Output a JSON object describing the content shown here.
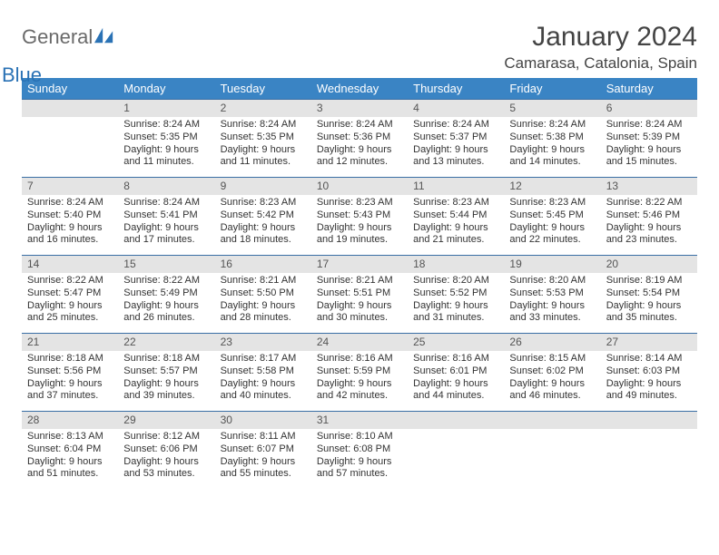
{
  "logo": {
    "general": "General",
    "blue": "Blue"
  },
  "title": "January 2024",
  "location": "Camarasa, Catalonia, Spain",
  "colors": {
    "header_bg": "#3a84c4",
    "header_text": "#ffffff",
    "row_border": "#3a6fa5",
    "daynum_bg": "#e4e4e4",
    "body_text": "#333333",
    "logo_accent": "#2a72b5"
  },
  "weekdays": [
    "Sunday",
    "Monday",
    "Tuesday",
    "Wednesday",
    "Thursday",
    "Friday",
    "Saturday"
  ],
  "blank_leading": 1,
  "days": [
    {
      "n": 1,
      "sunrise": "8:24 AM",
      "sunset": "5:35 PM",
      "daylight": "9 hours and 11 minutes."
    },
    {
      "n": 2,
      "sunrise": "8:24 AM",
      "sunset": "5:35 PM",
      "daylight": "9 hours and 11 minutes."
    },
    {
      "n": 3,
      "sunrise": "8:24 AM",
      "sunset": "5:36 PM",
      "daylight": "9 hours and 12 minutes."
    },
    {
      "n": 4,
      "sunrise": "8:24 AM",
      "sunset": "5:37 PM",
      "daylight": "9 hours and 13 minutes."
    },
    {
      "n": 5,
      "sunrise": "8:24 AM",
      "sunset": "5:38 PM",
      "daylight": "9 hours and 14 minutes."
    },
    {
      "n": 6,
      "sunrise": "8:24 AM",
      "sunset": "5:39 PM",
      "daylight": "9 hours and 15 minutes."
    },
    {
      "n": 7,
      "sunrise": "8:24 AM",
      "sunset": "5:40 PM",
      "daylight": "9 hours and 16 minutes."
    },
    {
      "n": 8,
      "sunrise": "8:24 AM",
      "sunset": "5:41 PM",
      "daylight": "9 hours and 17 minutes."
    },
    {
      "n": 9,
      "sunrise": "8:23 AM",
      "sunset": "5:42 PM",
      "daylight": "9 hours and 18 minutes."
    },
    {
      "n": 10,
      "sunrise": "8:23 AM",
      "sunset": "5:43 PM",
      "daylight": "9 hours and 19 minutes."
    },
    {
      "n": 11,
      "sunrise": "8:23 AM",
      "sunset": "5:44 PM",
      "daylight": "9 hours and 21 minutes."
    },
    {
      "n": 12,
      "sunrise": "8:23 AM",
      "sunset": "5:45 PM",
      "daylight": "9 hours and 22 minutes."
    },
    {
      "n": 13,
      "sunrise": "8:22 AM",
      "sunset": "5:46 PM",
      "daylight": "9 hours and 23 minutes."
    },
    {
      "n": 14,
      "sunrise": "8:22 AM",
      "sunset": "5:47 PM",
      "daylight": "9 hours and 25 minutes."
    },
    {
      "n": 15,
      "sunrise": "8:22 AM",
      "sunset": "5:49 PM",
      "daylight": "9 hours and 26 minutes."
    },
    {
      "n": 16,
      "sunrise": "8:21 AM",
      "sunset": "5:50 PM",
      "daylight": "9 hours and 28 minutes."
    },
    {
      "n": 17,
      "sunrise": "8:21 AM",
      "sunset": "5:51 PM",
      "daylight": "9 hours and 30 minutes."
    },
    {
      "n": 18,
      "sunrise": "8:20 AM",
      "sunset": "5:52 PM",
      "daylight": "9 hours and 31 minutes."
    },
    {
      "n": 19,
      "sunrise": "8:20 AM",
      "sunset": "5:53 PM",
      "daylight": "9 hours and 33 minutes."
    },
    {
      "n": 20,
      "sunrise": "8:19 AM",
      "sunset": "5:54 PM",
      "daylight": "9 hours and 35 minutes."
    },
    {
      "n": 21,
      "sunrise": "8:18 AM",
      "sunset": "5:56 PM",
      "daylight": "9 hours and 37 minutes."
    },
    {
      "n": 22,
      "sunrise": "8:18 AM",
      "sunset": "5:57 PM",
      "daylight": "9 hours and 39 minutes."
    },
    {
      "n": 23,
      "sunrise": "8:17 AM",
      "sunset": "5:58 PM",
      "daylight": "9 hours and 40 minutes."
    },
    {
      "n": 24,
      "sunrise": "8:16 AM",
      "sunset": "5:59 PM",
      "daylight": "9 hours and 42 minutes."
    },
    {
      "n": 25,
      "sunrise": "8:16 AM",
      "sunset": "6:01 PM",
      "daylight": "9 hours and 44 minutes."
    },
    {
      "n": 26,
      "sunrise": "8:15 AM",
      "sunset": "6:02 PM",
      "daylight": "9 hours and 46 minutes."
    },
    {
      "n": 27,
      "sunrise": "8:14 AM",
      "sunset": "6:03 PM",
      "daylight": "9 hours and 49 minutes."
    },
    {
      "n": 28,
      "sunrise": "8:13 AM",
      "sunset": "6:04 PM",
      "daylight": "9 hours and 51 minutes."
    },
    {
      "n": 29,
      "sunrise": "8:12 AM",
      "sunset": "6:06 PM",
      "daylight": "9 hours and 53 minutes."
    },
    {
      "n": 30,
      "sunrise": "8:11 AM",
      "sunset": "6:07 PM",
      "daylight": "9 hours and 55 minutes."
    },
    {
      "n": 31,
      "sunrise": "8:10 AM",
      "sunset": "6:08 PM",
      "daylight": "9 hours and 57 minutes."
    }
  ],
  "labels": {
    "sunrise": "Sunrise:",
    "sunset": "Sunset:",
    "daylight": "Daylight:"
  }
}
